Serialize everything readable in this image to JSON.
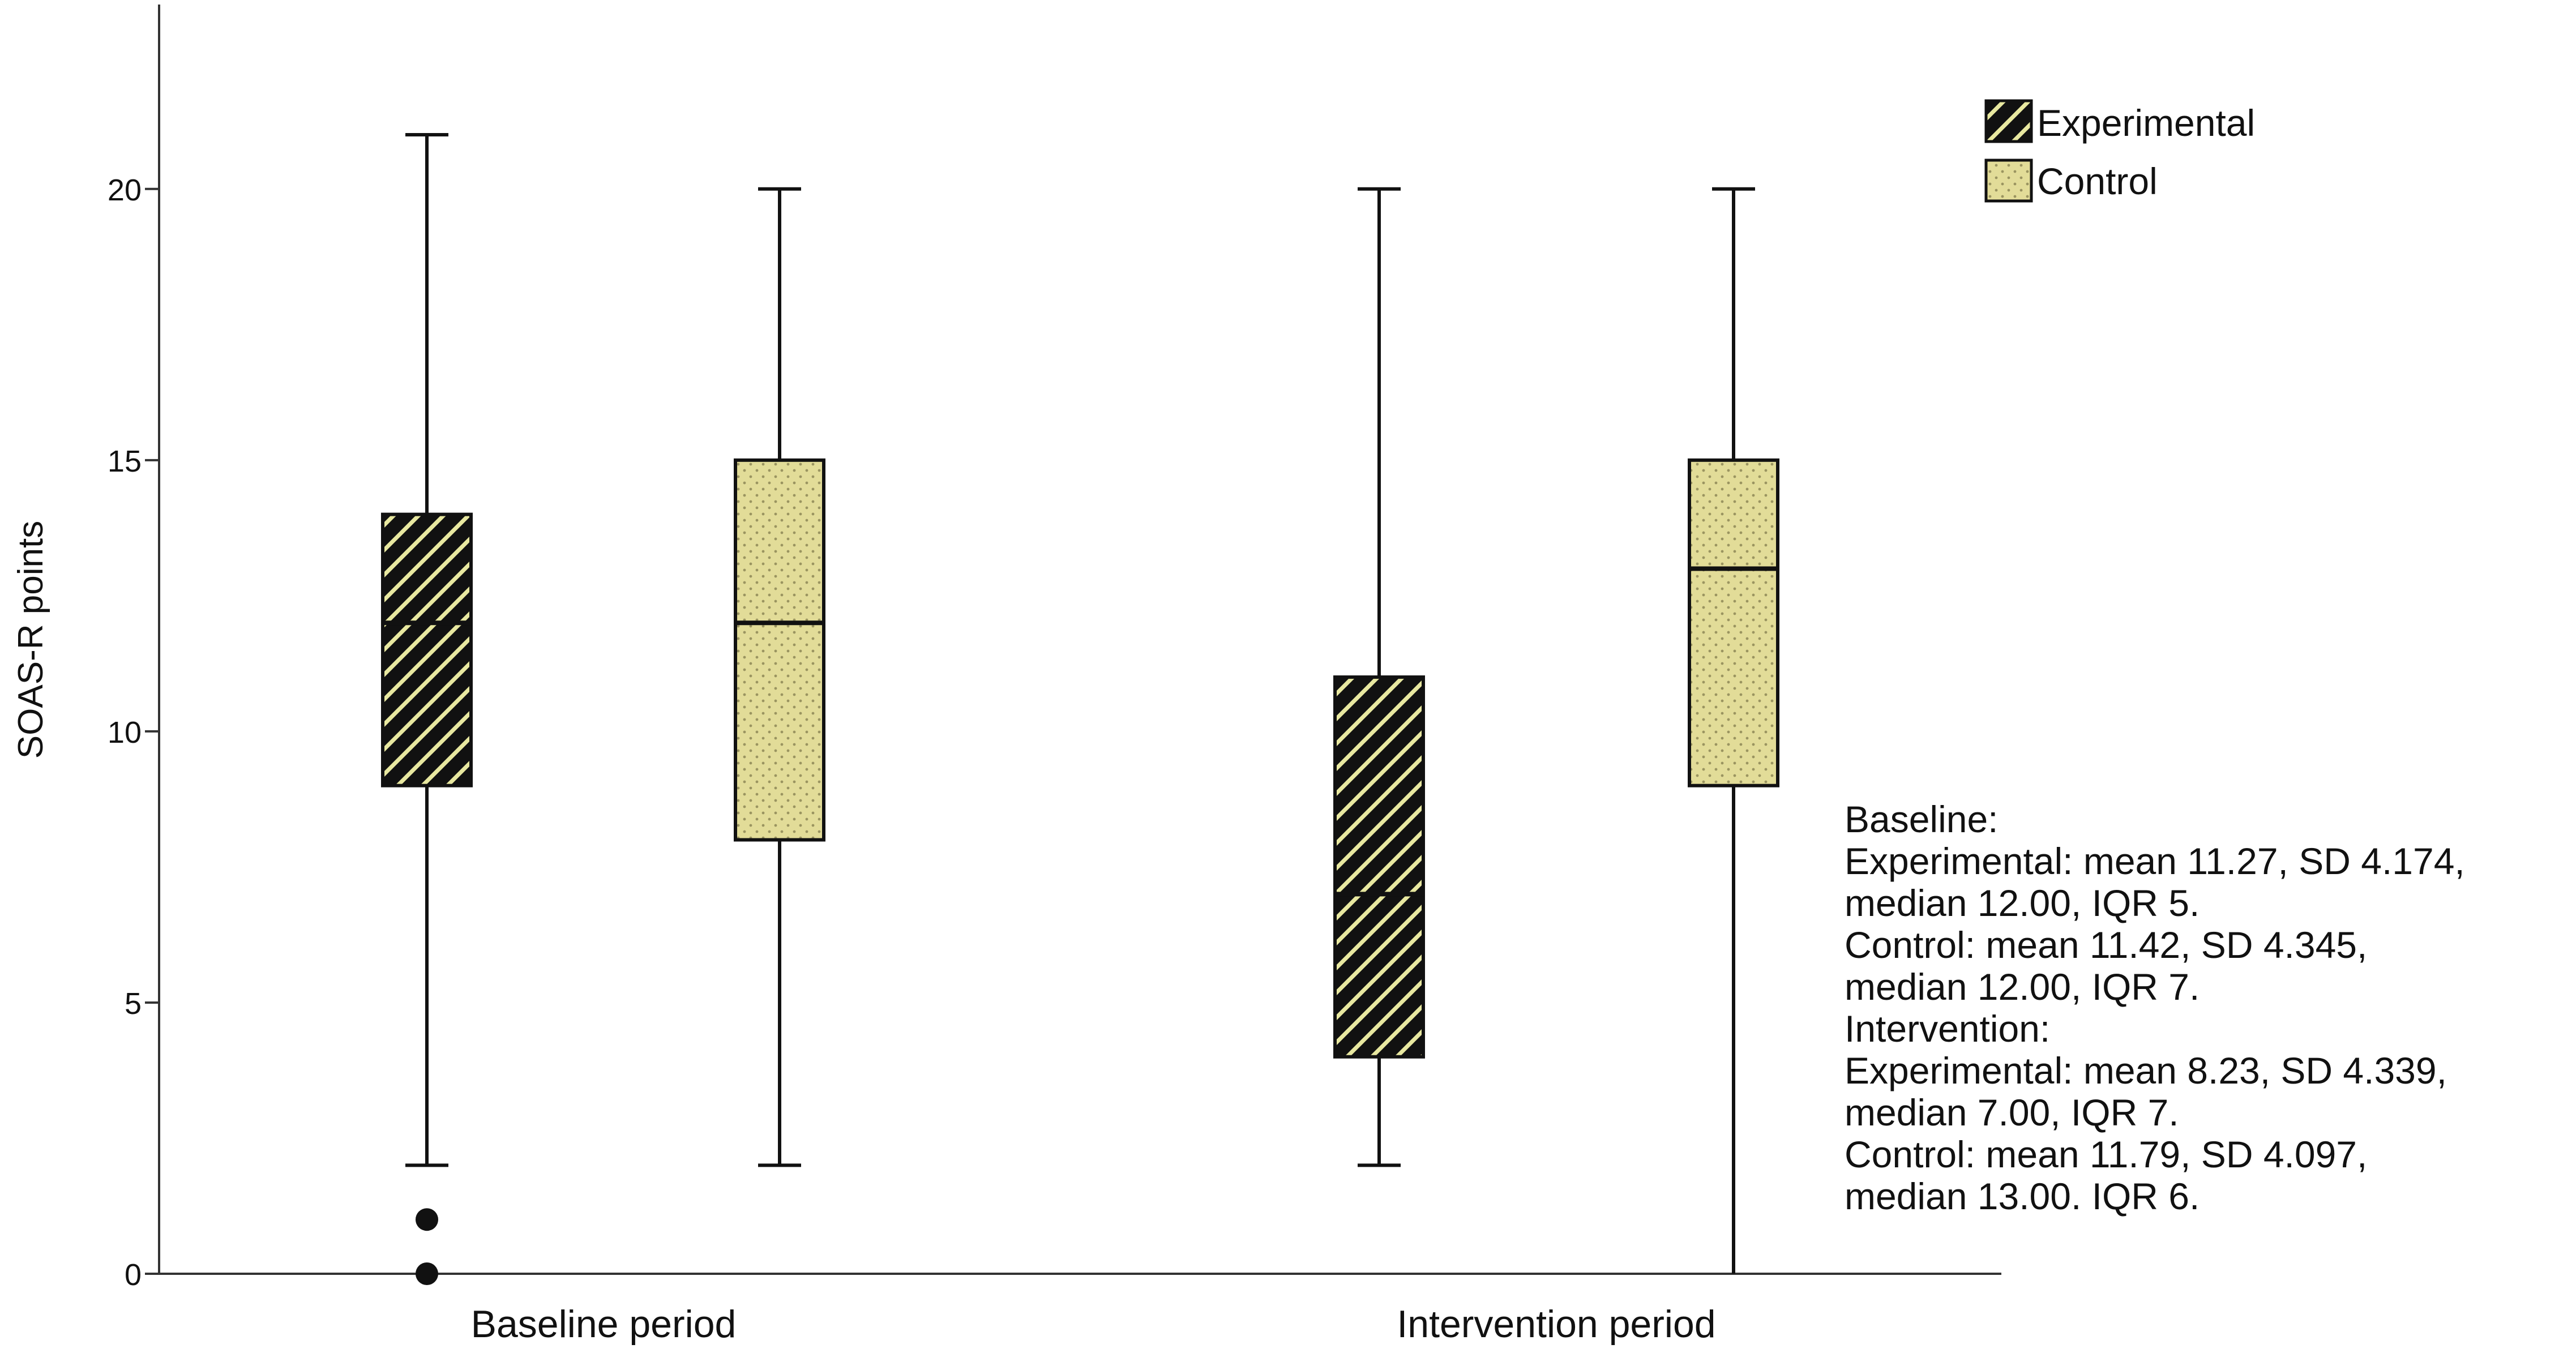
{
  "chart_data": {
    "type": "boxplot",
    "ylabel": "SOAS-R points",
    "xlabel": "",
    "ylim": [
      0,
      23.4
    ],
    "yticks": [
      0,
      5,
      10,
      15,
      20
    ],
    "grid": false,
    "legend_position": "top-right",
    "categories": [
      "Baseline period",
      "Intervention period"
    ],
    "series": [
      {
        "name": "Experimental",
        "pattern": "diagonal-stripes",
        "colors": {
          "fill": "#e8e8a0",
          "stripe": "#111111"
        },
        "boxes": [
          {
            "min": 2,
            "q1": 9,
            "median": 12,
            "q3": 14,
            "max": 21,
            "outliers": [
              0,
              1
            ]
          },
          {
            "min": 2,
            "q1": 4,
            "median": 7,
            "q3": 11,
            "max": 20,
            "outliers": []
          }
        ]
      },
      {
        "name": "Control",
        "pattern": "dots",
        "colors": {
          "fill": "#e2dc98",
          "dot": "#9a9460"
        },
        "boxes": [
          {
            "min": 2,
            "q1": 8,
            "median": 12,
            "q3": 15,
            "max": 20,
            "outliers": []
          },
          {
            "min": 0,
            "q1": 9,
            "median": 13,
            "q3": 15,
            "max": 20,
            "outliers": []
          }
        ]
      }
    ],
    "annotation_lines": [
      "Baseline:",
      "Experimental: mean 11.27, SD 4.174,",
      "median 12.00, IQR 5.",
      "Control: mean 11.42, SD 4.345,",
      "median 12.00, IQR 7.",
      "Intervention:",
      "Experimental: mean 8.23, SD 4.339,",
      "median 7.00, IQR 7.",
      "Control: mean 11.79, SD 4.097,",
      "median 13.00. IQR 6."
    ]
  }
}
